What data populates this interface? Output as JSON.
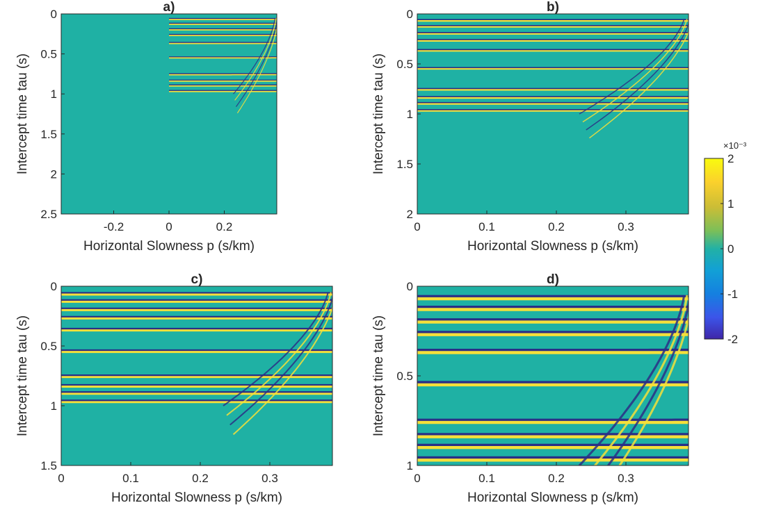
{
  "colors": {
    "background": "#1fb1a4",
    "positive": "#f5e03a",
    "negative": "#2b2f86",
    "axis": "#262626"
  },
  "colorbar": {
    "label_scale": "×10⁻³",
    "min": -2,
    "max": 2,
    "ticks": [
      "2",
      "1",
      "0",
      "-1",
      "-2"
    ],
    "colormap": "parula"
  },
  "chart_data": [
    {
      "type": "heatmap",
      "label": "a)",
      "xlabel": "Horizontal Slowness p (s/km)",
      "ylabel": "Intercept time tau (s)",
      "xlim": [
        -0.39,
        0.39
      ],
      "ylim": [
        2.5,
        0
      ],
      "xticks": [
        -0.2,
        0,
        0.2
      ],
      "xtick_labels": [
        "-0.2",
        "0",
        "0.2"
      ],
      "yticks": [
        0,
        0.5,
        1,
        1.5,
        2,
        2.5
      ],
      "ytick_labels": [
        "0",
        "0.5",
        "1",
        "1.5",
        "2",
        "2.5"
      ],
      "mask_p_below": 0,
      "event_tau0": [
        0.07,
        0.13,
        0.2,
        0.27,
        0.37,
        0.55,
        0.76,
        0.84,
        0.9,
        0.97
      ],
      "color_range": [
        -0.002,
        0.002
      ]
    },
    {
      "type": "heatmap",
      "label": "b)",
      "xlabel": "Horizontal Slowness p (s/km)",
      "ylabel": "Intercept time tau (s)",
      "xlim": [
        0,
        0.39
      ],
      "ylim": [
        2,
        0
      ],
      "xticks": [
        0,
        0.1,
        0.2,
        0.3
      ],
      "xtick_labels": [
        "0",
        "0.1",
        "0.2",
        "0.3"
      ],
      "yticks": [
        0,
        0.5,
        1,
        1.5,
        2
      ],
      "ytick_labels": [
        "0",
        "0.5",
        "1",
        "1.5",
        "2"
      ],
      "event_tau0": [
        0.07,
        0.13,
        0.2,
        0.27,
        0.37,
        0.55,
        0.76,
        0.84,
        0.9,
        0.97
      ],
      "color_range": [
        -0.002,
        0.002
      ]
    },
    {
      "type": "heatmap",
      "label": "c)",
      "xlabel": "Horizontal Slowness p (s/km)",
      "ylabel": "Intercept time tau (s)",
      "xlim": [
        0,
        0.39
      ],
      "ylim": [
        1.5,
        0
      ],
      "xticks": [
        0,
        0.1,
        0.2,
        0.3
      ],
      "xtick_labels": [
        "0",
        "0.1",
        "0.2",
        "0.3"
      ],
      "yticks": [
        0,
        0.5,
        1,
        1.5
      ],
      "ytick_labels": [
        "0",
        "0.5",
        "1",
        "1.5"
      ],
      "event_tau0": [
        0.07,
        0.13,
        0.2,
        0.27,
        0.37,
        0.55,
        0.76,
        0.84,
        0.9,
        0.97
      ],
      "color_range": [
        -0.002,
        0.002
      ]
    },
    {
      "type": "heatmap",
      "label": "d)",
      "xlabel": "Horizontal Slowness p (s/km)",
      "ylabel": "Intercept time tau (s)",
      "xlim": [
        0,
        0.39
      ],
      "ylim": [
        1,
        0
      ],
      "xticks": [
        0,
        0.1,
        0.2,
        0.3
      ],
      "xtick_labels": [
        "0",
        "0.1",
        "0.2",
        "0.3"
      ],
      "yticks": [
        0,
        0.5,
        1
      ],
      "ytick_labels": [
        "0",
        "0.5",
        "1"
      ],
      "event_tau0": [
        0.07,
        0.13,
        0.2,
        0.27,
        0.37,
        0.55,
        0.76,
        0.84,
        0.9,
        0.97
      ],
      "color_range": [
        -0.002,
        0.002
      ]
    }
  ]
}
